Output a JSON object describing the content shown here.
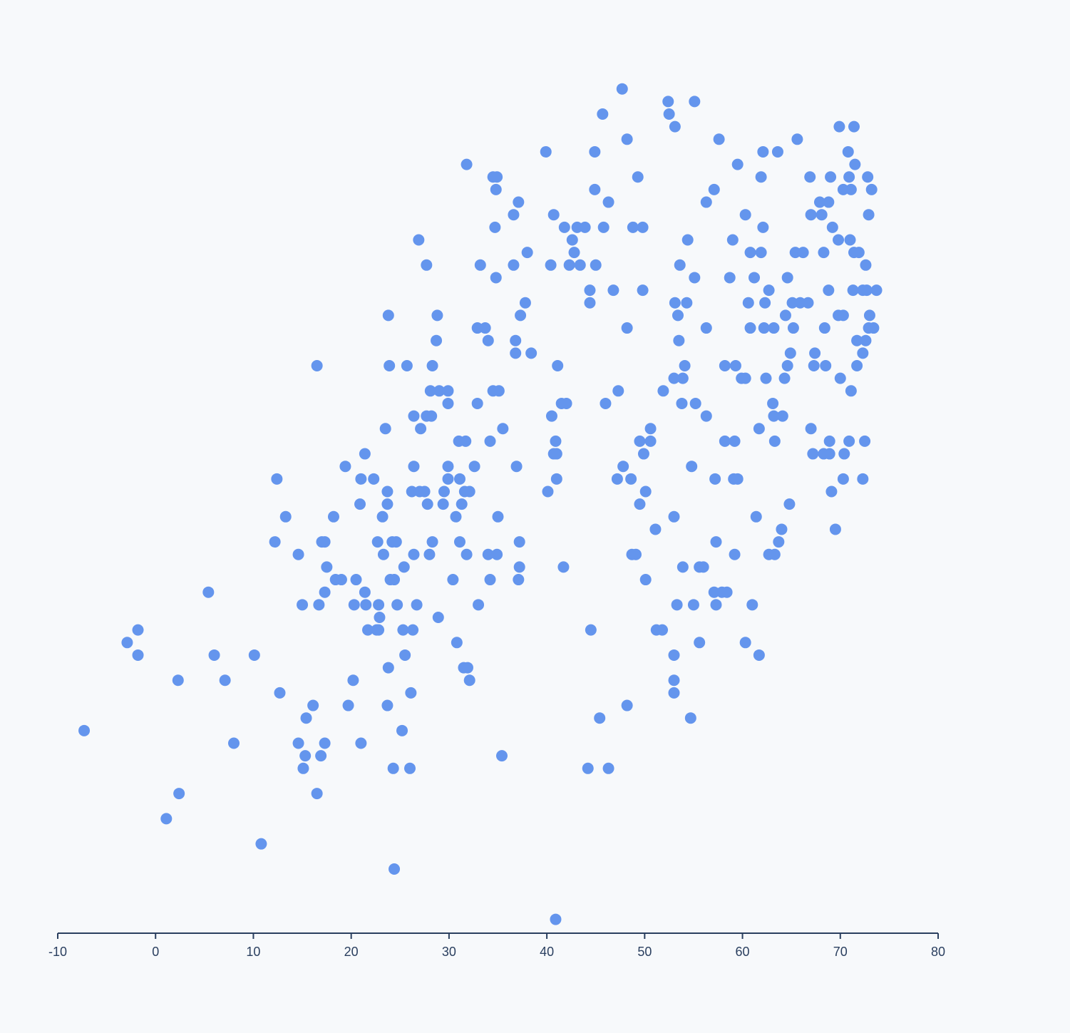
{
  "chart_data": {
    "type": "scatter",
    "color": "#6495ed",
    "xlim": [
      -10,
      80
    ],
    "xticks": [
      -10,
      0,
      10,
      20,
      30,
      40,
      50,
      60,
      70,
      80
    ],
    "ylim": [
      -1.1,
      68
    ],
    "x": [
      47.7,
      52.4,
      55.1,
      45.7,
      52.5,
      53.1,
      69.9,
      71.4,
      48.2,
      57.6,
      65.6,
      39.9,
      44.9,
      62.1,
      63.6,
      70.8,
      31.8,
      59.5,
      71.5,
      34.5,
      34.9,
      49.3,
      61.9,
      66.9,
      69.0,
      70.9,
      72.8,
      34.8,
      44.9,
      57.1,
      70.3,
      71.1,
      73.2,
      37.1,
      46.3,
      56.3,
      67.9,
      68.8,
      36.6,
      40.7,
      60.3,
      67.0,
      68.1,
      72.9,
      34.7,
      41.8,
      43.1,
      43.9,
      45.8,
      48.8,
      49.8,
      62.1,
      69.2,
      26.9,
      42.6,
      54.4,
      59.0,
      69.8,
      71.0,
      38.0,
      42.8,
      60.8,
      61.9,
      65.4,
      66.2,
      68.3,
      71.4,
      71.9,
      27.7,
      33.2,
      36.6,
      40.4,
      42.3,
      43.4,
      45.0,
      53.6,
      72.6,
      34.8,
      55.1,
      58.7,
      61.2,
      64.6,
      44.4,
      46.8,
      49.8,
      62.7,
      68.8,
      71.3,
      72.3,
      72.7,
      73.7,
      37.8,
      44.4,
      53.1,
      54.3,
      60.6,
      62.3,
      65.1,
      65.9,
      66.7,
      23.8,
      28.8,
      37.3,
      53.4,
      64.4,
      69.8,
      70.3,
      73.0,
      32.9,
      33.7,
      48.2,
      56.3,
      60.8,
      62.2,
      63.2,
      65.2,
      68.4,
      72.9,
      73.4,
      28.7,
      34.0,
      36.8,
      53.5,
      71.7,
      72.6,
      36.8,
      38.4,
      64.9,
      67.4,
      72.3,
      16.5,
      23.9,
      25.7,
      28.3,
      41.1,
      54.1,
      58.2,
      59.3,
      64.6,
      67.3,
      68.5,
      71.7,
      53.0,
      53.9,
      59.9,
      60.3,
      62.4,
      64.3,
      70.0,
      28.1,
      29.0,
      29.9,
      34.5,
      35.1,
      47.3,
      51.9,
      71.1,
      29.9,
      32.9,
      41.5,
      42.0,
      46.0,
      53.8,
      55.2,
      63.1,
      26.4,
      27.7,
      28.2,
      40.5,
      56.3,
      63.2,
      64.1,
      23.5,
      27.1,
      35.5,
      50.6,
      61.7,
      67.0,
      31.0,
      31.7,
      34.2,
      40.9,
      49.5,
      50.6,
      58.2,
      59.2,
      63.3,
      68.9,
      70.9,
      72.5,
      21.4,
      40.7,
      41.0,
      49.9,
      67.2,
      68.3,
      68.9,
      70.4,
      19.4,
      26.4,
      29.9,
      32.6,
      36.9,
      47.8,
      54.8,
      12.4,
      21.0,
      22.3,
      29.9,
      31.1,
      41.0,
      47.2,
      48.6,
      57.2,
      59.1,
      59.5,
      70.3,
      72.3,
      23.7,
      26.2,
      27.0,
      27.5,
      29.5,
      31.6,
      32.1,
      40.1,
      50.1,
      69.1,
      20.9,
      23.7,
      27.8,
      29.4,
      31.3,
      49.5,
      64.8,
      13.3,
      18.2,
      23.2,
      30.7,
      35.0,
      53.0,
      61.4,
      51.1,
      64.0,
      69.5,
      12.2,
      17.0,
      17.3,
      22.7,
      24.2,
      24.6,
      28.3,
      31.1,
      37.2,
      57.3,
      63.7,
      14.6,
      23.3,
      26.4,
      28.0,
      31.8,
      34.0,
      34.9,
      48.7,
      49.1,
      59.2,
      62.7,
      63.3,
      17.5,
      25.4,
      37.2,
      41.7,
      53.9,
      55.6,
      56.0,
      18.4,
      19.0,
      20.5,
      24.0,
      24.4,
      30.4,
      34.2,
      37.1,
      50.1,
      5.4,
      17.3,
      21.4,
      57.1,
      57.9,
      58.4,
      15.0,
      16.7,
      20.3,
      21.5,
      22.8,
      24.7,
      26.7,
      33.0,
      53.3,
      55.0,
      57.3,
      61.0,
      22.9,
      28.9,
      -1.8,
      21.7,
      22.6,
      22.8,
      25.3,
      26.3,
      44.5,
      51.2,
      51.8,
      -2.9,
      30.8,
      55.6,
      60.3,
      -1.8,
      6.0,
      10.1,
      25.5,
      53.0,
      61.7,
      23.8,
      31.5,
      31.9,
      2.3,
      7.1,
      20.2,
      32.1,
      53.0,
      12.7,
      26.1,
      53.0,
      16.1,
      19.7,
      23.7,
      48.2,
      15.4,
      45.4,
      54.7,
      -7.3,
      25.2,
      8.0,
      14.6,
      17.3,
      21.0,
      15.3,
      16.9,
      35.4,
      15.1,
      24.3,
      26.0,
      44.2,
      46.3,
      2.4,
      16.5,
      1.1,
      10.8,
      24.4,
      40.9
    ],
    "y": [
      66,
      65,
      65,
      64,
      64,
      63,
      63,
      63,
      62,
      62,
      62,
      61,
      61,
      61,
      61,
      61,
      60,
      60,
      60,
      59,
      59,
      59,
      59,
      59,
      59,
      59,
      59,
      58,
      58,
      58,
      58,
      58,
      58,
      57,
      57,
      57,
      57,
      57,
      56,
      56,
      56,
      56,
      56,
      56,
      55,
      55,
      55,
      55,
      55,
      55,
      55,
      55,
      55,
      54,
      54,
      54,
      54,
      54,
      54,
      53,
      53,
      53,
      53,
      53,
      53,
      53,
      53,
      53,
      52,
      52,
      52,
      52,
      52,
      52,
      52,
      52,
      52,
      51,
      51,
      51,
      51,
      51,
      50,
      50,
      50,
      50,
      50,
      50,
      50,
      50,
      50,
      49,
      49,
      49,
      49,
      49,
      49,
      49,
      49,
      49,
      48,
      48,
      48,
      48,
      48,
      48,
      48,
      48,
      47,
      47,
      47,
      47,
      47,
      47,
      47,
      47,
      47,
      47,
      47,
      46,
      46,
      46,
      46,
      46,
      46,
      45,
      45,
      45,
      45,
      45,
      44,
      44,
      44,
      44,
      44,
      44,
      44,
      44,
      44,
      44,
      44,
      44,
      43,
      43,
      43,
      43,
      43,
      43,
      43,
      42,
      42,
      42,
      42,
      42,
      42,
      42,
      42,
      41,
      41,
      41,
      41,
      41,
      41,
      41,
      41,
      40,
      40,
      40,
      40,
      40,
      40,
      40,
      39,
      39,
      39,
      39,
      39,
      39,
      38,
      38,
      38,
      38,
      38,
      38,
      38,
      38,
      38,
      38,
      38,
      38,
      37,
      37,
      37,
      37,
      37,
      37,
      37,
      37,
      36,
      36,
      36,
      36,
      36,
      36,
      36,
      35,
      35,
      35,
      35,
      35,
      35,
      35,
      35,
      35,
      35,
      35,
      35,
      35,
      34,
      34,
      34,
      34,
      34,
      34,
      34,
      34,
      34,
      34,
      33,
      33,
      33,
      33,
      33,
      33,
      33,
      32,
      32,
      32,
      32,
      32,
      32,
      32,
      31,
      31,
      31,
      30,
      30,
      30,
      30,
      30,
      30,
      30,
      30,
      30,
      30,
      30,
      29,
      29,
      29,
      29,
      29,
      29,
      29,
      29,
      29,
      29,
      29,
      29,
      28,
      28,
      28,
      28,
      28,
      28,
      28,
      27,
      27,
      27,
      27,
      27,
      27,
      27,
      27,
      27,
      26,
      26,
      26,
      26,
      26,
      26,
      25,
      25,
      25,
      25,
      25,
      25,
      25,
      25,
      25,
      25,
      25,
      25,
      24,
      24,
      23,
      23,
      23,
      23,
      23,
      23,
      23,
      23,
      23,
      22,
      22,
      22,
      22,
      21,
      21,
      21,
      21,
      21,
      21,
      20,
      20,
      20,
      19,
      19,
      19,
      19,
      19,
      18,
      18,
      18,
      17,
      17,
      17,
      17,
      16,
      16,
      16,
      15,
      15,
      14,
      14,
      14,
      14,
      13,
      13,
      13,
      12,
      12,
      12,
      12,
      12,
      10,
      10,
      8,
      6,
      4,
      0
    ]
  }
}
